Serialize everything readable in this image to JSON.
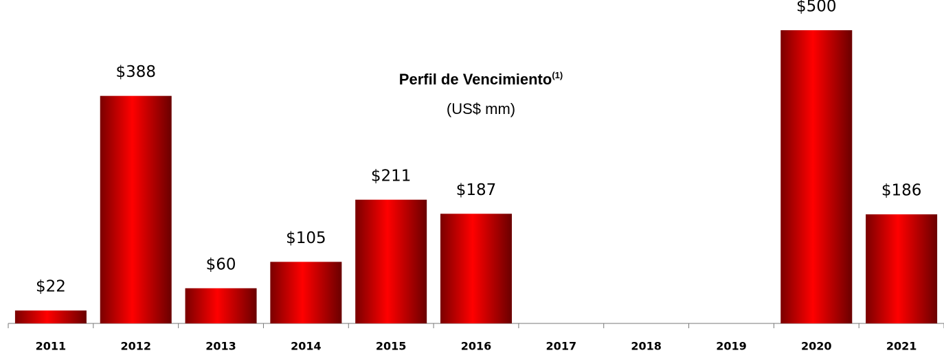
{
  "chart_data": {
    "type": "bar",
    "title": "Perfil de Vencimiento",
    "title_note": "(1)",
    "subtitle": "(US$ mm)",
    "categories": [
      "2011",
      "2012",
      "2013",
      "2014",
      "2015",
      "2016",
      "2017",
      "2018",
      "2019",
      "2020",
      "2021"
    ],
    "values": [
      22,
      388,
      60,
      105,
      211,
      187,
      null,
      null,
      null,
      500,
      186
    ],
    "value_labels": [
      "$22",
      "$388",
      "$60",
      "$105",
      "$211",
      "$187",
      null,
      null,
      null,
      "$500",
      "$186"
    ],
    "color": "#ff0000",
    "ylim": [
      0,
      500
    ]
  }
}
